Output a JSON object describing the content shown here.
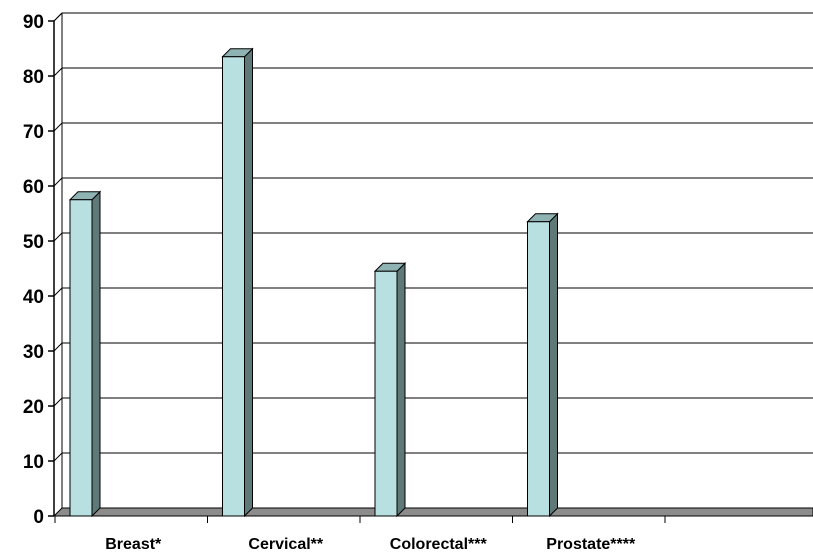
{
  "chart_data": {
    "type": "bar",
    "categories": [
      "Breast*",
      "Cervical**",
      "Colorectal***",
      "Prostate****"
    ],
    "values": [
      57.5,
      83.5,
      44.5,
      53.5
    ],
    "ylim": [
      0,
      90
    ],
    "yticks": [
      0,
      10,
      20,
      30,
      40,
      50,
      60,
      70,
      80,
      90
    ],
    "grid": true,
    "style": "3d-column",
    "colors": {
      "bar_front": "#b9e0e0",
      "bar_top": "#8fb3b3",
      "bar_side": "#5f7878",
      "floor": "#8c8c8c",
      "grid": "#000000"
    }
  }
}
